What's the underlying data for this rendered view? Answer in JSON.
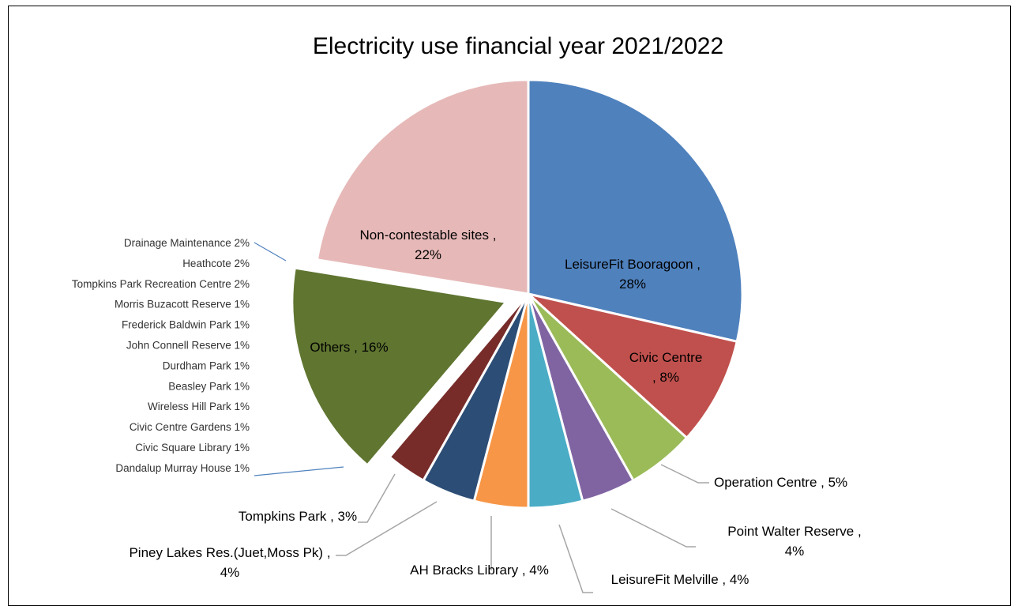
{
  "chart_data": {
    "type": "pie",
    "title": "Electricity use financial year 2021/2022",
    "slices": [
      {
        "name": "LeisureFit Booragoon",
        "value": 28,
        "label_line1": "LeisureFit Booragoon ,",
        "label_line2": "28%",
        "color": "#4f81bd"
      },
      {
        "name": "Civic Centre",
        "value": 8,
        "label_line1": "Civic Centre",
        "label_line2": ", 8%",
        "color": "#c0504d"
      },
      {
        "name": "Operation Centre",
        "value": 5,
        "label_line1": "Operation Centre , 5%",
        "label_line2": "",
        "color": "#9bbb59"
      },
      {
        "name": "Point Walter Reserve",
        "value": 4,
        "label_line1": "Point Walter Reserve ,",
        "label_line2": "4%",
        "color": "#8064a2"
      },
      {
        "name": "LeisureFit Melville",
        "value": 4,
        "label_line1": "LeisureFit Melville , 4%",
        "label_line2": "",
        "color": "#4bacc6"
      },
      {
        "name": "AH Bracks Library",
        "value": 4,
        "label_line1": "AH Bracks Library , 4%",
        "label_line2": "",
        "color": "#f79646"
      },
      {
        "name": "Piney Lakes Res.(Juet,Moss Pk)",
        "value": 4,
        "label_line1": "Piney Lakes Res.(Juet,Moss Pk) ,",
        "label_line2": "4%",
        "color": "#2c4d75"
      },
      {
        "name": "Tompkins Park",
        "value": 3,
        "label_line1": "Tompkins Park , 3%",
        "label_line2": "",
        "color": "#772c2a"
      },
      {
        "name": "Others",
        "value": 16,
        "label_line1": "Others , 16%",
        "label_line2": "",
        "color": "#5f7530"
      },
      {
        "name": "Non-contestable sites",
        "value": 22,
        "label_line1": "Non-contestable sites ,",
        "label_line2": "22%",
        "color": "#e6b9b8"
      }
    ],
    "others_breakdown": [
      {
        "name": "Drainage Maintenance",
        "value": 2,
        "label": "Drainage Maintenance  2%"
      },
      {
        "name": "Heathcote",
        "value": 2,
        "label": "Heathcote  2%"
      },
      {
        "name": "Tompkins Park Recreation Centre",
        "value": 2,
        "label": "Tompkins Park Recreation Centre  2%"
      },
      {
        "name": "Morris Buzacott Reserve",
        "value": 1,
        "label": "Morris Buzacott Reserve  1%"
      },
      {
        "name": "Frederick Baldwin Park",
        "value": 1,
        "label": "Frederick Baldwin Park  1%"
      },
      {
        "name": "John Connell Reserve",
        "value": 1,
        "label": "John Connell Reserve  1%"
      },
      {
        "name": "Durdham Park",
        "value": 1,
        "label": "Durdham Park  1%"
      },
      {
        "name": "Beasley Park",
        "value": 1,
        "label": "Beasley Park  1%"
      },
      {
        "name": "Wireless Hill Park",
        "value": 1,
        "label": "Wireless Hill Park  1%"
      },
      {
        "name": "Civic Centre Gardens",
        "value": 1,
        "label": "Civic Centre Gardens  1%"
      },
      {
        "name": "Civic Square Library",
        "value": 1,
        "label": "Civic Square Library  1%"
      },
      {
        "name": "Dandalup Murray House",
        "value": 1,
        "label": "Dandalup Murray House  1%"
      }
    ]
  }
}
